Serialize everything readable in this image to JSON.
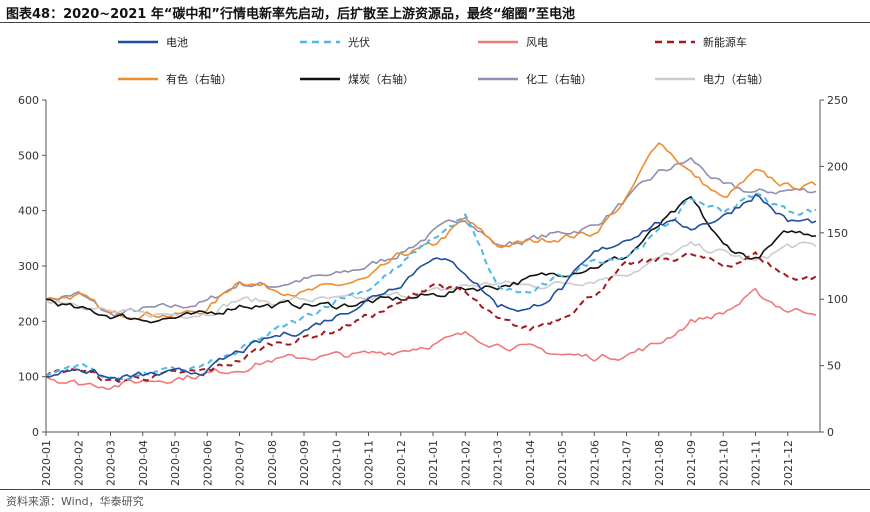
{
  "title": "图表48：2020~2021 年“碳中和”行情电新率先启动，后扩散至上游资源品，最终“缩圈”至电池",
  "source": "资料来源：Wind，华泰研究",
  "chart_data": {
    "type": "line",
    "x": [
      "2020-01",
      "2020-02",
      "2020-03",
      "2020-04",
      "2020-05",
      "2020-06",
      "2020-07",
      "2020-08",
      "2020-09",
      "2020-10",
      "2020-11",
      "2020-12",
      "2021-01",
      "2021-02",
      "2021-03",
      "2021-04",
      "2021-05",
      "2021-06",
      "2021-07",
      "2021-08",
      "2021-09",
      "2021-10",
      "2021-11",
      "2021-12"
    ],
    "xlim": [
      "2020-01",
      "2021-12-31"
    ],
    "y_left": {
      "ylim": [
        0,
        600
      ],
      "ticks": [
        0,
        100,
        200,
        300,
        400,
        500,
        600
      ]
    },
    "y_right": {
      "ylim": [
        0,
        250
      ],
      "ticks": [
        0,
        50,
        100,
        150,
        200,
        250
      ]
    },
    "grid": false,
    "legend_position": "top",
    "series": [
      {
        "name": "电池",
        "axis": "left",
        "color": "#1f4e9c",
        "dash": "solid",
        "values": [
          100,
          118,
          95,
          102,
          105,
          112,
          145,
          170,
          185,
          210,
          240,
          270,
          320,
          290,
          230,
          220,
          260,
          320,
          350,
          380,
          370,
          390,
          430,
          380
        ]
      },
      {
        "name": "光伏",
        "axis": "left",
        "color": "#4fb8e8",
        "dash": "dashed",
        "values": [
          100,
          125,
          95,
          105,
          110,
          120,
          145,
          180,
          205,
          240,
          260,
          300,
          350,
          390,
          260,
          250,
          280,
          310,
          320,
          360,
          420,
          400,
          430,
          400
        ]
      },
      {
        "name": "风电",
        "axis": "left",
        "color": "#ef7a7a",
        "dash": "solid",
        "values": [
          100,
          88,
          85,
          92,
          98,
          105,
          115,
          130,
          135,
          138,
          140,
          148,
          160,
          175,
          160,
          150,
          140,
          135,
          140,
          160,
          200,
          215,
          250,
          220
        ]
      },
      {
        "name": "新能源车",
        "axis": "left",
        "color": "#a31a1e",
        "dash": "dashed",
        "values": [
          100,
          115,
          90,
          100,
          103,
          110,
          130,
          160,
          170,
          185,
          210,
          230,
          270,
          250,
          200,
          185,
          210,
          250,
          300,
          310,
          320,
          300,
          320,
          280
        ]
      },
      {
        "name": "有色（右轴）",
        "axis": "right",
        "color": "#f08c2e",
        "dash": "solid",
        "values": [
          100,
          103,
          88,
          90,
          88,
          92,
          115,
          108,
          105,
          110,
          115,
          133,
          140,
          160,
          140,
          143,
          147,
          150,
          175,
          220,
          195,
          175,
          195,
          185
        ]
      },
      {
        "name": "煤炭（右轴）",
        "axis": "right",
        "color": "#111111",
        "dash": "solid",
        "values": [
          100,
          92,
          88,
          85,
          86,
          88,
          96,
          95,
          96,
          95,
          98,
          100,
          103,
          108,
          110,
          115,
          120,
          125,
          132,
          155,
          175,
          140,
          130,
          150
        ]
      },
      {
        "name": "化工（右轴）",
        "axis": "right",
        "color": "#8e8fb2",
        "dash": "solid",
        "values": [
          100,
          104,
          88,
          92,
          94,
          98,
          112,
          110,
          115,
          118,
          125,
          135,
          150,
          162,
          140,
          145,
          150,
          155,
          175,
          195,
          205,
          185,
          180,
          182
        ]
      },
      {
        "name": "电力（右轴）",
        "axis": "right",
        "color": "#cccccc",
        "dash": "solid",
        "values": [
          100,
          98,
          90,
          88,
          89,
          90,
          100,
          98,
          100,
          99,
          100,
          103,
          105,
          110,
          112,
          110,
          112,
          115,
          120,
          130,
          140,
          135,
          128,
          140
        ]
      }
    ]
  }
}
